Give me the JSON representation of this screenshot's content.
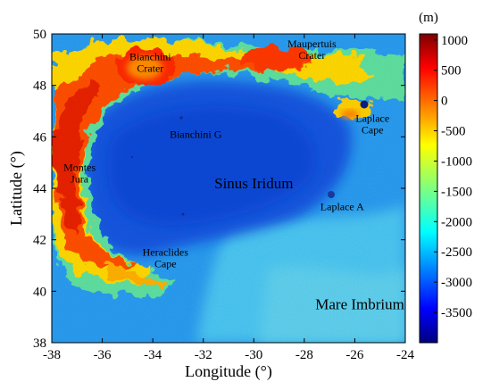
{
  "map": {
    "x_axis": {
      "title": "Longitude (°)",
      "range": [
        -38,
        -24
      ],
      "ticks": [
        "-38",
        "-36",
        "-34",
        "-32",
        "-30",
        "-28",
        "-26",
        "-24"
      ]
    },
    "y_axis": {
      "title": "Latitude (°)",
      "range": [
        38,
        50
      ],
      "ticks": [
        "38",
        "40",
        "42",
        "44",
        "46",
        "48",
        "50"
      ]
    },
    "colorbar": {
      "unit": "(m)",
      "range": [
        -4000,
        1100
      ],
      "ticks": [
        "1000",
        "500",
        "0",
        "-500",
        "-1000",
        "-1500",
        "-2000",
        "-2500",
        "-3000",
        "-3500"
      ],
      "colormap": "jet"
    },
    "labels": [
      {
        "lines": [
          "Bianchini",
          "Crater"
        ],
        "lon": -34.1,
        "lat": 48.9,
        "size": "small"
      },
      {
        "lines": [
          "Maupertuis",
          "Crater"
        ],
        "lon": -27.7,
        "lat": 49.4,
        "size": "small"
      },
      {
        "lines": [
          "Laplace",
          "Cape"
        ],
        "lon": -25.3,
        "lat": 46.5,
        "size": "small"
      },
      {
        "lines": [
          "Bianchini G"
        ],
        "lon": -32.3,
        "lat": 46.1,
        "size": "small"
      },
      {
        "lines": [
          "Montes",
          "Jura"
        ],
        "lon": -36.9,
        "lat": 44.6,
        "size": "small"
      },
      {
        "lines": [
          "Sinus Iridum"
        ],
        "lon": -30.0,
        "lat": 44.2,
        "size": "large"
      },
      {
        "lines": [
          "Laplace A"
        ],
        "lon": -26.5,
        "lat": 43.3,
        "size": "small"
      },
      {
        "lines": [
          "Heraclides",
          "Cape"
        ],
        "lon": -33.5,
        "lat": 41.3,
        "size": "small"
      },
      {
        "lines": [
          "Mare Imbrium"
        ],
        "lon": -25.8,
        "lat": 39.5,
        "size": "large"
      }
    ]
  }
}
